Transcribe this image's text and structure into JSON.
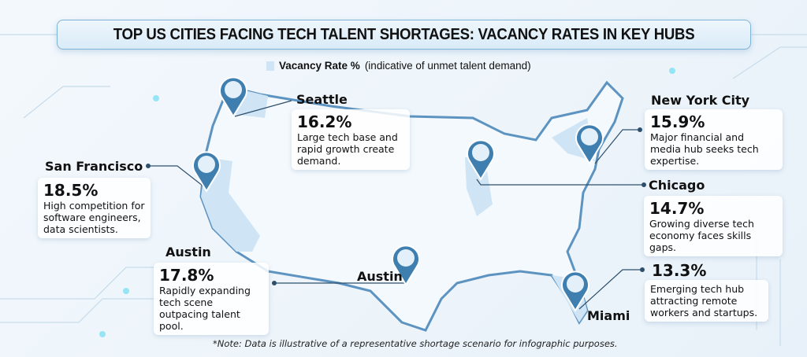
{
  "title": "TOP US CITIES FACING TECH TALENT SHORTAGES: VACANCY RATES IN KEY HUBS",
  "legend": {
    "label": "Vacancy Rate %",
    "detail": "(indicative of unmet talent demand)",
    "color": "#cfe5f5"
  },
  "cities": [
    {
      "name": "Seattle",
      "rate": "16.2%",
      "description": "Large tech base and rapid growth create demand.",
      "pin_icon": "office-building-icon"
    },
    {
      "name": "San Francisco",
      "rate": "18.5%",
      "description": "High competition for software engineers, data scientists.",
      "pin_icon": "office-building-shortage-icon"
    },
    {
      "name": "Austin",
      "rate": "17.8%",
      "description": "Rapidly expanding tech scene outpacing talent pool.",
      "map_label": "Austin",
      "pin_icon": "office-building-icon"
    },
    {
      "name": "New York City",
      "rate": "15.9%",
      "description": "Major financial and media hub seeks tech expertise.",
      "pin_icon": "city-skyline-icon"
    },
    {
      "name": "Chicago",
      "rate": "14.7%",
      "description": "Growing diverse tech economy faces skills gaps.",
      "pin_icon": "city-skyline-icon"
    },
    {
      "name": "Miami",
      "rate": "13.3%",
      "description": "Emerging tech hub attracting remote workers and startups.",
      "map_label": "Miami",
      "pin_icon": "person-shortage-icon"
    }
  ],
  "note": "*Note: Data is illustrative of a representative shortage scenario for infographic purposes.",
  "colors": {
    "map_fill": "#f4f9fd",
    "highlight_state": "#cfe5f5",
    "pin": "#3f7fb0",
    "coast": "#5d93c0"
  }
}
